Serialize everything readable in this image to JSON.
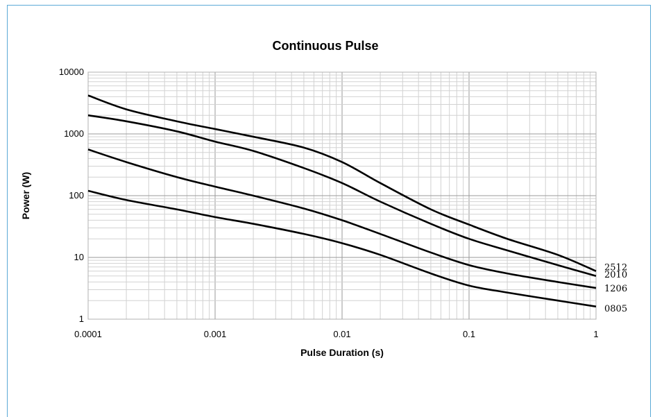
{
  "chart_data": {
    "type": "line",
    "title": "Continuous Pulse",
    "xlabel": "Pulse Duration (s)",
    "ylabel": "Power (W)",
    "xscale": "log",
    "yscale": "log",
    "xlim": [
      0.0001,
      1
    ],
    "ylim": [
      1,
      10000
    ],
    "xticks": [
      "0.0001",
      "0.001",
      "0.01",
      "0.1",
      "1"
    ],
    "yticks": [
      "1",
      "10",
      "100",
      "1000",
      "10000"
    ],
    "grid": true,
    "legend": "labels at right end of lines",
    "series": [
      {
        "name": "2512",
        "x": [
          0.0001,
          0.0002,
          0.0005,
          0.001,
          0.002,
          0.005,
          0.01,
          0.02,
          0.05,
          0.1,
          0.2,
          0.5,
          1
        ],
        "values": [
          4200,
          2500,
          1600,
          1200,
          900,
          600,
          350,
          160,
          60,
          34,
          20,
          11,
          6
        ]
      },
      {
        "name": "2010",
        "x": [
          0.0001,
          0.0002,
          0.0005,
          0.001,
          0.002,
          0.005,
          0.01,
          0.02,
          0.05,
          0.1,
          0.2,
          0.5,
          1
        ],
        "values": [
          2000,
          1600,
          1100,
          750,
          530,
          280,
          160,
          80,
          35,
          20,
          13,
          7.5,
          5
        ]
      },
      {
        "name": "1206",
        "x": [
          0.0001,
          0.0002,
          0.0005,
          0.001,
          0.002,
          0.005,
          0.01,
          0.02,
          0.05,
          0.1,
          0.2,
          0.5,
          1
        ],
        "values": [
          560,
          350,
          200,
          140,
          100,
          62,
          40,
          24,
          12,
          7.5,
          5.5,
          4,
          3.2
        ]
      },
      {
        "name": "0805",
        "x": [
          0.0001,
          0.0002,
          0.0005,
          0.001,
          0.002,
          0.005,
          0.01,
          0.02,
          0.05,
          0.1,
          0.2,
          0.5,
          1
        ],
        "values": [
          120,
          85,
          60,
          45,
          35,
          24,
          17,
          11,
          5.5,
          3.5,
          2.7,
          2,
          1.6
        ]
      }
    ]
  }
}
